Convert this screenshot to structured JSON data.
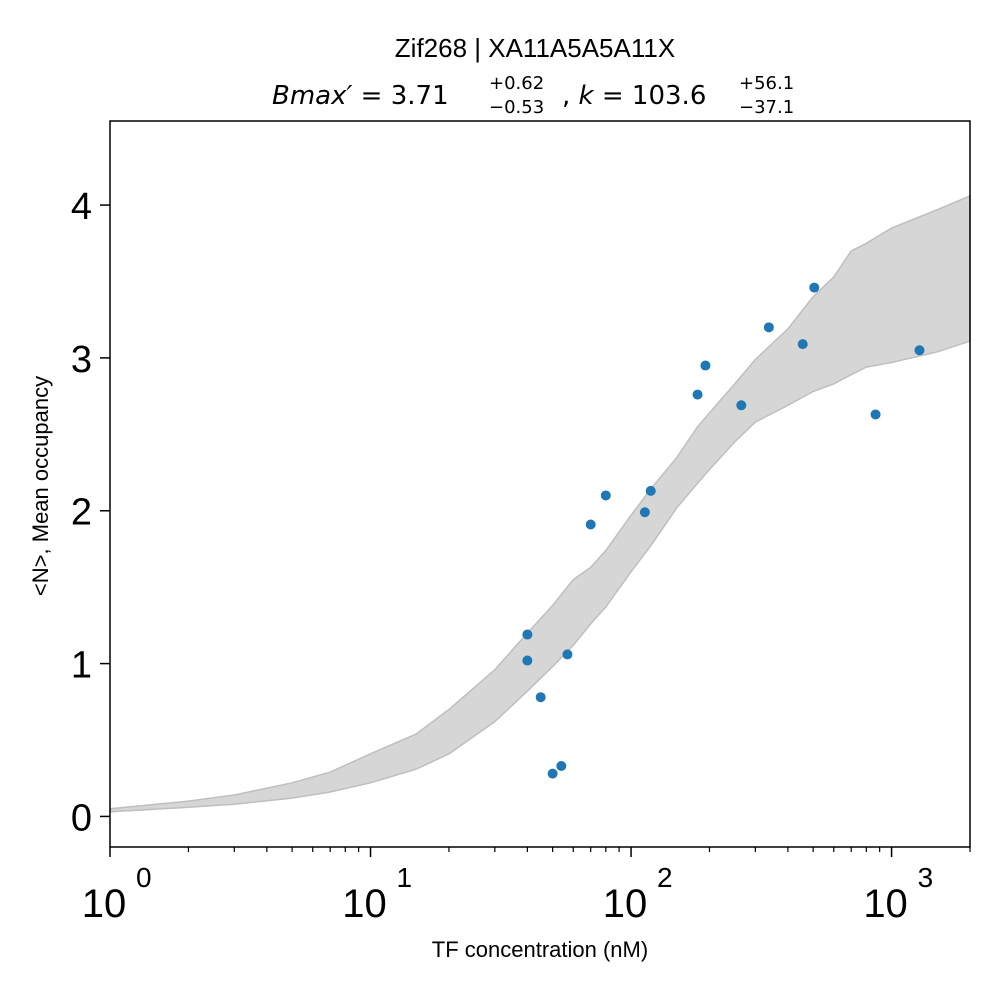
{
  "chart_data": {
    "type": "scatter",
    "title": "Zif268 | XA11A5A5A11X",
    "subtitle": {
      "bmax_symbol": "Bmax′",
      "bmax_value": "3.71",
      "bmax_plus": "+0.62",
      "bmax_minus": "−0.53",
      "k_symbol": "k",
      "k_value": "103.6",
      "k_plus": "+56.1",
      "k_minus": "−37.1"
    },
    "xlabel": "TF concentration (nM)",
    "ylabel": "<N>, Mean occupancy",
    "x_scale": "log",
    "xlim": [
      1,
      2000
    ],
    "ylim": [
      -0.2,
      4.55
    ],
    "x_ticks": [
      {
        "base": "10",
        "exp": "0",
        "value": 1
      },
      {
        "base": "10",
        "exp": "1",
        "value": 10
      },
      {
        "base": "10",
        "exp": "2",
        "value": 100
      },
      {
        "base": "10",
        "exp": "3",
        "value": 1000
      }
    ],
    "y_ticks": [
      {
        "label": "0",
        "value": 0
      },
      {
        "label": "1",
        "value": 1
      },
      {
        "label": "2",
        "value": 2
      },
      {
        "label": "3",
        "value": 3
      },
      {
        "label": "4",
        "value": 4
      }
    ],
    "grid": false,
    "marker_color": "#1f77b4",
    "band_color": "#d6d6d6",
    "band_edge_color": "#bfbfbf",
    "series": [
      {
        "points": [
          {
            "x": 40,
            "y": 1.19
          },
          {
            "x": 40,
            "y": 1.02
          },
          {
            "x": 45,
            "y": 0.78
          },
          {
            "x": 50,
            "y": 0.28
          },
          {
            "x": 54,
            "y": 0.33
          },
          {
            "x": 57,
            "y": 1.06
          },
          {
            "x": 70,
            "y": 1.91
          },
          {
            "x": 80,
            "y": 2.1
          },
          {
            "x": 113,
            "y": 1.99
          },
          {
            "x": 119,
            "y": 2.13
          },
          {
            "x": 180,
            "y": 2.76
          },
          {
            "x": 193,
            "y": 2.95
          },
          {
            "x": 265,
            "y": 2.69
          },
          {
            "x": 338,
            "y": 3.2
          },
          {
            "x": 456,
            "y": 3.09
          },
          {
            "x": 505,
            "y": 3.46
          },
          {
            "x": 868,
            "y": 2.63
          },
          {
            "x": 1280,
            "y": 3.05
          }
        ]
      }
    ],
    "band": {
      "x": [
        1,
        2,
        3,
        5,
        7,
        10,
        15,
        20,
        30,
        40,
        50,
        60,
        70,
        80,
        100,
        120,
        150,
        180,
        200,
        250,
        300,
        400,
        500,
        600,
        700,
        800,
        1000,
        1500,
        2000
      ],
      "upper": [
        0.05,
        0.1,
        0.14,
        0.22,
        0.29,
        0.41,
        0.54,
        0.7,
        0.96,
        1.2,
        1.38,
        1.55,
        1.63,
        1.74,
        1.97,
        2.15,
        2.35,
        2.55,
        2.64,
        2.83,
        2.99,
        3.19,
        3.4,
        3.53,
        3.7,
        3.75,
        3.85,
        3.97,
        4.06
      ],
      "lower": [
        0.03,
        0.06,
        0.08,
        0.12,
        0.16,
        0.22,
        0.31,
        0.41,
        0.62,
        0.82,
        0.98,
        1.12,
        1.26,
        1.37,
        1.6,
        1.78,
        2.02,
        2.18,
        2.27,
        2.45,
        2.58,
        2.69,
        2.78,
        2.83,
        2.89,
        2.94,
        2.97,
        3.04,
        3.11
      ]
    }
  }
}
